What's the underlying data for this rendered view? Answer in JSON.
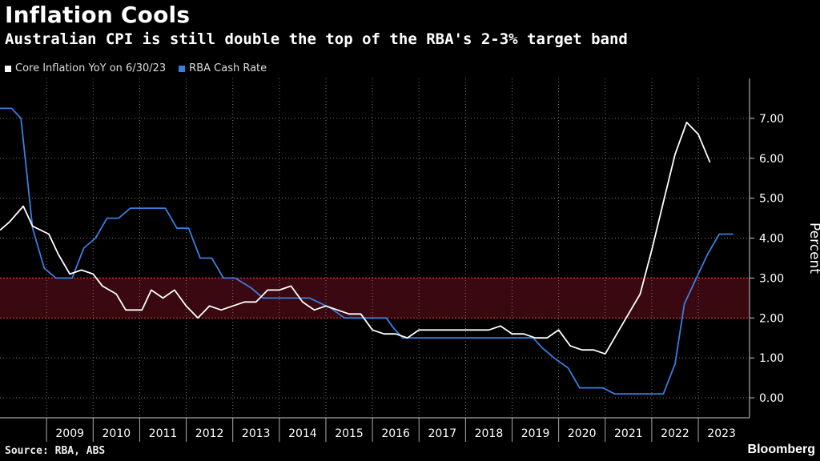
{
  "chart_data": {
    "type": "line",
    "title": "Inflation Cools",
    "subtitle": "Australian CPI is still double the top of the RBA's 2-3% target band",
    "ylabel": "Percent",
    "xlabel": "",
    "ylim": [
      -0.5,
      8.0
    ],
    "xlim": [
      2008.0,
      2024.1
    ],
    "x_ticks": [
      "2009",
      "2010",
      "2011",
      "2012",
      "2013",
      "2014",
      "2015",
      "2016",
      "2017",
      "2018",
      "2019",
      "2020",
      "2021",
      "2022",
      "2023"
    ],
    "y_ticks": [
      "0.00",
      "1.00",
      "2.00",
      "3.00",
      "4.00",
      "5.00",
      "6.00",
      "7.00"
    ],
    "y_tick_values": [
      0,
      1,
      2,
      3,
      4,
      5,
      6,
      7
    ],
    "legend_position": "top-left",
    "target_band": {
      "low": 2,
      "high": 3
    },
    "series": [
      {
        "name": "Core Inflation YoY on 6/30/23",
        "color": "#ffffff",
        "points": [
          [
            2008.0,
            4.2
          ],
          [
            2008.2,
            4.4
          ],
          [
            2008.5,
            4.8
          ],
          [
            2008.7,
            4.3
          ],
          [
            2009.05,
            4.1
          ],
          [
            2009.25,
            3.6
          ],
          [
            2009.5,
            3.1
          ],
          [
            2009.75,
            3.2
          ],
          [
            2010.0,
            3.1
          ],
          [
            2010.2,
            2.8
          ],
          [
            2010.5,
            2.6
          ],
          [
            2010.7,
            2.2
          ],
          [
            2011.05,
            2.2
          ],
          [
            2011.25,
            2.7
          ],
          [
            2011.5,
            2.5
          ],
          [
            2011.75,
            2.7
          ],
          [
            2012.0,
            2.3
          ],
          [
            2012.25,
            2.0
          ],
          [
            2012.5,
            2.3
          ],
          [
            2012.75,
            2.2
          ],
          [
            2013.0,
            2.3
          ],
          [
            2013.25,
            2.4
          ],
          [
            2013.5,
            2.4
          ],
          [
            2013.75,
            2.7
          ],
          [
            2014.0,
            2.7
          ],
          [
            2014.25,
            2.8
          ],
          [
            2014.5,
            2.4
          ],
          [
            2014.75,
            2.2
          ],
          [
            2015.0,
            2.3
          ],
          [
            2015.25,
            2.2
          ],
          [
            2015.5,
            2.1
          ],
          [
            2015.75,
            2.1
          ],
          [
            2016.0,
            1.7
          ],
          [
            2016.25,
            1.6
          ],
          [
            2016.5,
            1.6
          ],
          [
            2016.75,
            1.5
          ],
          [
            2017.0,
            1.7
          ],
          [
            2017.25,
            1.7
          ],
          [
            2017.5,
            1.7
          ],
          [
            2017.75,
            1.7
          ],
          [
            2018.0,
            1.7
          ],
          [
            2018.25,
            1.7
          ],
          [
            2018.5,
            1.7
          ],
          [
            2018.75,
            1.8
          ],
          [
            2019.0,
            1.6
          ],
          [
            2019.25,
            1.6
          ],
          [
            2019.5,
            1.5
          ],
          [
            2019.75,
            1.5
          ],
          [
            2020.0,
            1.7
          ],
          [
            2020.25,
            1.3
          ],
          [
            2020.5,
            1.2
          ],
          [
            2020.75,
            1.2
          ],
          [
            2021.0,
            1.1
          ],
          [
            2021.25,
            1.6
          ],
          [
            2021.5,
            2.1
          ],
          [
            2021.75,
            2.6
          ],
          [
            2022.0,
            3.7
          ],
          [
            2022.25,
            4.9
          ],
          [
            2022.5,
            6.1
          ],
          [
            2022.75,
            6.9
          ],
          [
            2023.0,
            6.6
          ],
          [
            2023.25,
            5.9
          ]
        ]
      },
      {
        "name": "RBA Cash Rate",
        "color": "#3a7ee0",
        "points": [
          [
            2008.0,
            7.25
          ],
          [
            2008.25,
            7.25
          ],
          [
            2008.45,
            7.0
          ],
          [
            2008.7,
            4.25
          ],
          [
            2008.95,
            3.25
          ],
          [
            2009.2,
            3.0
          ],
          [
            2009.55,
            3.0
          ],
          [
            2009.8,
            3.75
          ],
          [
            2010.05,
            4.0
          ],
          [
            2010.3,
            4.5
          ],
          [
            2010.55,
            4.5
          ],
          [
            2010.8,
            4.75
          ],
          [
            2011.55,
            4.75
          ],
          [
            2011.8,
            4.25
          ],
          [
            2012.05,
            4.25
          ],
          [
            2012.3,
            3.5
          ],
          [
            2012.55,
            3.5
          ],
          [
            2012.8,
            3.0
          ],
          [
            2013.05,
            3.0
          ],
          [
            2013.4,
            2.75
          ],
          [
            2013.65,
            2.5
          ],
          [
            2014.65,
            2.5
          ],
          [
            2015.1,
            2.25
          ],
          [
            2015.4,
            2.0
          ],
          [
            2016.3,
            2.0
          ],
          [
            2016.45,
            1.75
          ],
          [
            2016.65,
            1.5
          ],
          [
            2019.45,
            1.5
          ],
          [
            2019.65,
            1.25
          ],
          [
            2019.9,
            1.0
          ],
          [
            2020.2,
            0.75
          ],
          [
            2020.45,
            0.25
          ],
          [
            2020.95,
            0.25
          ],
          [
            2021.2,
            0.1
          ],
          [
            2022.25,
            0.1
          ],
          [
            2022.5,
            0.85
          ],
          [
            2022.7,
            2.35
          ],
          [
            2023.0,
            3.1
          ],
          [
            2023.2,
            3.6
          ],
          [
            2023.45,
            4.1
          ],
          [
            2023.75,
            4.1
          ]
        ]
      }
    ]
  },
  "source": "Source: RBA, ABS",
  "brand": "Bloomberg"
}
